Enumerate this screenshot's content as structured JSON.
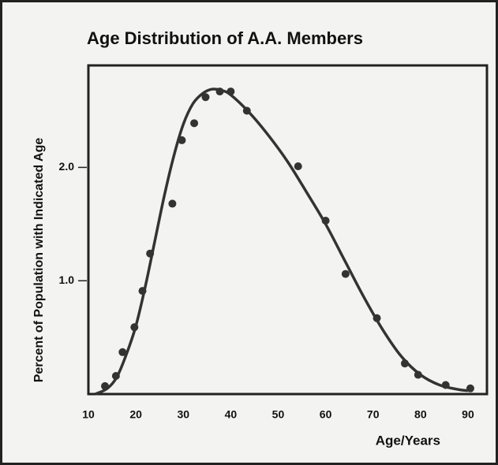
{
  "chart_data": {
    "type": "line",
    "title": "Age Distribution of A.A. Members",
    "x_label": "Age/Years",
    "y_label": "Percent of Population with Indicated Age",
    "xlim": [
      10,
      94
    ],
    "ylim": [
      0,
      2.9
    ],
    "xticks": [
      10,
      20,
      30,
      40,
      50,
      60,
      70,
      80,
      90
    ],
    "yticks": [
      {
        "value": 1,
        "label": "1.0"
      },
      {
        "value": 2,
        "label": "2.0"
      }
    ],
    "series": [
      {
        "type": "line",
        "color": "#333333",
        "x": [
          11.5,
          14,
          16,
          18,
          20,
          22,
          24,
          26,
          28,
          30,
          32,
          34,
          36,
          38,
          40,
          44,
          48,
          52,
          56,
          60,
          64,
          68,
          72,
          76,
          80,
          84,
          88,
          90
        ],
        "values": [
          0,
          0.05,
          0.15,
          0.35,
          0.6,
          0.95,
          1.35,
          1.75,
          2.1,
          2.38,
          2.56,
          2.65,
          2.69,
          2.68,
          2.64,
          2.48,
          2.28,
          2.05,
          1.78,
          1.5,
          1.18,
          0.86,
          0.57,
          0.33,
          0.17,
          0.08,
          0.04,
          0.03
        ]
      },
      {
        "type": "scatter",
        "color": "#333333",
        "x": [
          13.5,
          15.8,
          17.2,
          19.7,
          21.4,
          23,
          27.7,
          29.7,
          32.3,
          34.7,
          37.7,
          40,
          43.4,
          54.2,
          60,
          64.2,
          70.8,
          76.7,
          79.5,
          85.3,
          90.5
        ],
        "values": [
          0.07,
          0.16,
          0.37,
          0.59,
          0.91,
          1.24,
          1.68,
          2.24,
          2.39,
          2.62,
          2.67,
          2.67,
          2.5,
          2.01,
          1.53,
          1.06,
          0.67,
          0.27,
          0.17,
          0.08,
          0.05
        ]
      }
    ]
  }
}
